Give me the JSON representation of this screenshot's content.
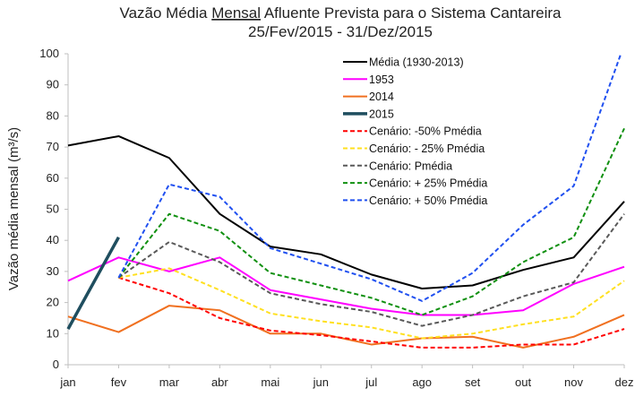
{
  "chart_data": {
    "type": "line",
    "title_pre": "Vazão Média ",
    "title_underlined": "Mensal",
    "title_post": " Afluente Prevista para o Sistema Cantareira",
    "subtitle": "25/Fev/2015 - 31/Dez/2015",
    "xlabel": "",
    "ylabel": "Vazão média mensal (m³/s)",
    "ylim": [
      0,
      100
    ],
    "yticks": [
      0,
      10,
      20,
      30,
      40,
      50,
      60,
      70,
      80,
      90,
      100
    ],
    "categories": [
      "jan",
      "fev",
      "mar",
      "abr",
      "mai",
      "jun",
      "jul",
      "ago",
      "set",
      "out",
      "nov",
      "dez"
    ],
    "grid": false,
    "legend_position": "top-center",
    "series": [
      {
        "name": "Média (1930-2013)",
        "color": "#000000",
        "dash": false,
        "width": 2,
        "values": [
          70.5,
          73.5,
          66.5,
          48.5,
          38,
          35.5,
          29,
          24.5,
          25.5,
          30.5,
          34.5,
          52.5
        ]
      },
      {
        "name": "1953",
        "color": "#ff00ff",
        "dash": false,
        "width": 2,
        "values": [
          27,
          34.5,
          30,
          34.5,
          24,
          21,
          18,
          16,
          16,
          17.5,
          26,
          31.5
        ]
      },
      {
        "name": "2014",
        "color": "#f07020",
        "dash": false,
        "width": 2,
        "values": [
          15.5,
          10.5,
          19,
          17.5,
          10,
          10,
          6.5,
          8.5,
          9,
          5.5,
          9,
          16
        ]
      },
      {
        "name": "2015",
        "color": "#1f4e5f",
        "dash": false,
        "width": 3.5,
        "values": [
          11.5,
          41,
          null,
          null,
          null,
          null,
          null,
          null,
          null,
          null,
          null,
          null
        ]
      },
      {
        "name": "Cenário: -50% Pmédia",
        "color": "#ff0000",
        "dash": true,
        "width": 2,
        "values": [
          null,
          28,
          23,
          15,
          11,
          9.5,
          7.5,
          5.5,
          5.5,
          6.5,
          6.5,
          11.5
        ]
      },
      {
        "name": "Cenário: - 25% Pmédia",
        "color": "#ffe020",
        "dash": true,
        "width": 2,
        "values": [
          null,
          28,
          31,
          24,
          16.5,
          14,
          12,
          8.5,
          10,
          13,
          15.5,
          27
        ]
      },
      {
        "name": "Cenário: Pmédia",
        "color": "#595959",
        "dash": true,
        "width": 2,
        "values": [
          null,
          28,
          39.5,
          33,
          23,
          19.5,
          17,
          12.5,
          16,
          22,
          26.5,
          48.5
        ]
      },
      {
        "name": "Cenário: + 25% Pmédia",
        "color": "#109010",
        "dash": true,
        "width": 2,
        "values": [
          null,
          28,
          48.5,
          43,
          29.5,
          25.5,
          21.5,
          16,
          22,
          33,
          41,
          76
        ]
      },
      {
        "name": "Cenário: + 50% Pmédia",
        "color": "#2050f0",
        "dash": true,
        "width": 2,
        "values": [
          null,
          28,
          58,
          54,
          37.5,
          32.5,
          27.5,
          20.5,
          29.5,
          45,
          57.5,
          103
        ]
      }
    ]
  }
}
